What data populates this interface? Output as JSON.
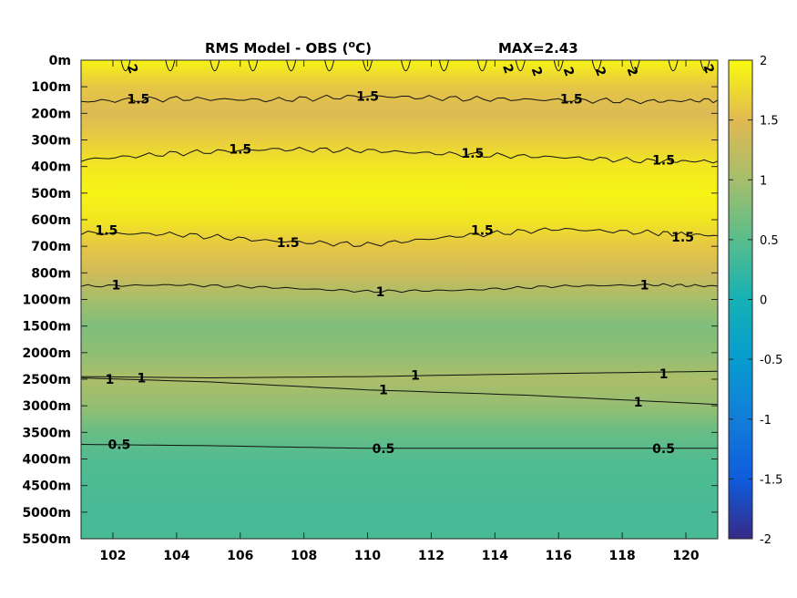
{
  "chart_data": {
    "type": "heatmap",
    "title": "RMS Model - OBS (",
    "title_unit_sup": "o",
    "title_unit_end": "C)",
    "max_annotation": "MAX=2.43",
    "x_ticks": [
      102,
      104,
      106,
      108,
      110,
      112,
      114,
      116,
      118,
      120
    ],
    "xlim": [
      101,
      121
    ],
    "y_tick_labels": [
      "0m",
      "100m",
      "200m",
      "300m",
      "400m",
      "500m",
      "600m",
      "700m",
      "800m",
      "1000m",
      "1500m",
      "2000m",
      "2500m",
      "3000m",
      "3500m",
      "4000m",
      "4500m",
      "5000m",
      "5500m"
    ],
    "colorbar": {
      "ticks": [
        2,
        1.5,
        1,
        0.5,
        0,
        -0.5,
        -1,
        -1.5,
        -2
      ],
      "tick_labels": [
        "2",
        "1.5",
        "1",
        "0.5",
        "0",
        "-0.5",
        "-1",
        "-1.5",
        "-2"
      ],
      "range": [
        -2,
        2
      ],
      "colormap": "parula"
    },
    "depth_profile": [
      1.95,
      1.6,
      1.45,
      1.65,
      1.85,
      1.95,
      1.85,
      1.6,
      1.35,
      1.0,
      0.75,
      0.85,
      1.05,
      0.9,
      0.6,
      0.45,
      0.4,
      0.38,
      0.38
    ],
    "contour_labels": [
      {
        "text": "2",
        "x": 102.6,
        "depth": 0.3
      },
      {
        "text": "2",
        "x": 114.4,
        "depth": 0.3
      },
      {
        "text": "2",
        "x": 115.3,
        "depth": 0.4
      },
      {
        "text": "2",
        "x": 116.3,
        "depth": 0.4
      },
      {
        "text": "2",
        "x": 117.3,
        "depth": 0.4
      },
      {
        "text": "2",
        "x": 118.3,
        "depth": 0.4
      },
      {
        "text": "2",
        "x": 120.7,
        "depth": 0.3
      },
      {
        "text": "1.5",
        "x": 102.8,
        "depth": 1.45
      },
      {
        "text": "1.5",
        "x": 110.0,
        "depth": 1.35
      },
      {
        "text": "1.5",
        "x": 116.4,
        "depth": 1.45
      },
      {
        "text": "1.5",
        "x": 106.0,
        "depth": 3.35
      },
      {
        "text": "1.5",
        "x": 113.3,
        "depth": 3.5
      },
      {
        "text": "1.5",
        "x": 119.3,
        "depth": 3.75
      },
      {
        "text": "1.5",
        "x": 101.8,
        "depth": 6.4
      },
      {
        "text": "1.5",
        "x": 107.5,
        "depth": 6.85
      },
      {
        "text": "1.5",
        "x": 113.6,
        "depth": 6.4
      },
      {
        "text": "1.5",
        "x": 119.9,
        "depth": 6.65
      },
      {
        "text": "1",
        "x": 102.1,
        "depth": 8.45
      },
      {
        "text": "1",
        "x": 110.4,
        "depth": 8.7
      },
      {
        "text": "1",
        "x": 118.7,
        "depth": 8.45
      },
      {
        "text": "1",
        "x": 101.9,
        "depth": 12.0
      },
      {
        "text": "1",
        "x": 102.9,
        "depth": 11.95
      },
      {
        "text": "1",
        "x": 111.5,
        "depth": 11.85
      },
      {
        "text": "1",
        "x": 119.3,
        "depth": 11.8
      },
      {
        "text": "1",
        "x": 110.5,
        "depth": 12.4
      },
      {
        "text": "1",
        "x": 118.5,
        "depth": 12.85
      },
      {
        "text": "0.5",
        "x": 102.2,
        "depth": 14.45
      },
      {
        "text": "0.5",
        "x": 110.5,
        "depth": 14.6
      },
      {
        "text": "0.5",
        "x": 119.3,
        "depth": 14.6
      }
    ],
    "contour_lines": [
      {
        "level": 1.5,
        "points": [
          [
            101,
            1.55
          ],
          [
            104,
            1.45
          ],
          [
            107,
            1.5
          ],
          [
            110,
            1.35
          ],
          [
            113,
            1.45
          ],
          [
            116,
            1.5
          ],
          [
            119,
            1.55
          ],
          [
            121,
            1.5
          ]
        ]
      },
      {
        "level": 1.5,
        "points": [
          [
            101,
            3.75
          ],
          [
            104,
            3.5
          ],
          [
            107,
            3.35
          ],
          [
            110,
            3.4
          ],
          [
            113,
            3.55
          ],
          [
            116,
            3.65
          ],
          [
            119,
            3.8
          ],
          [
            121,
            3.8
          ]
        ]
      },
      {
        "level": 1.5,
        "points": [
          [
            101,
            6.5
          ],
          [
            104,
            6.55
          ],
          [
            107,
            6.8
          ],
          [
            110,
            6.95
          ],
          [
            113,
            6.6
          ],
          [
            116,
            6.35
          ],
          [
            119,
            6.5
          ],
          [
            121,
            6.6
          ]
        ]
      },
      {
        "level": 1,
        "points": [
          [
            101,
            8.5
          ],
          [
            104,
            8.45
          ],
          [
            107,
            8.55
          ],
          [
            110,
            8.7
          ],
          [
            113,
            8.65
          ],
          [
            116,
            8.5
          ],
          [
            119,
            8.45
          ],
          [
            121,
            8.5
          ]
        ]
      },
      {
        "level": 1,
        "points": [
          [
            101,
            11.9
          ],
          [
            105,
            11.95
          ],
          [
            110,
            11.9
          ],
          [
            115,
            11.8
          ],
          [
            121,
            11.7
          ]
        ]
      },
      {
        "level": 1,
        "points": [
          [
            101,
            11.95
          ],
          [
            105,
            12.1
          ],
          [
            110,
            12.4
          ],
          [
            115,
            12.6
          ],
          [
            121,
            12.95
          ]
        ]
      },
      {
        "level": 0.5,
        "points": [
          [
            101,
            14.45
          ],
          [
            105,
            14.5
          ],
          [
            110,
            14.6
          ],
          [
            115,
            14.6
          ],
          [
            121,
            14.6
          ]
        ]
      }
    ]
  }
}
